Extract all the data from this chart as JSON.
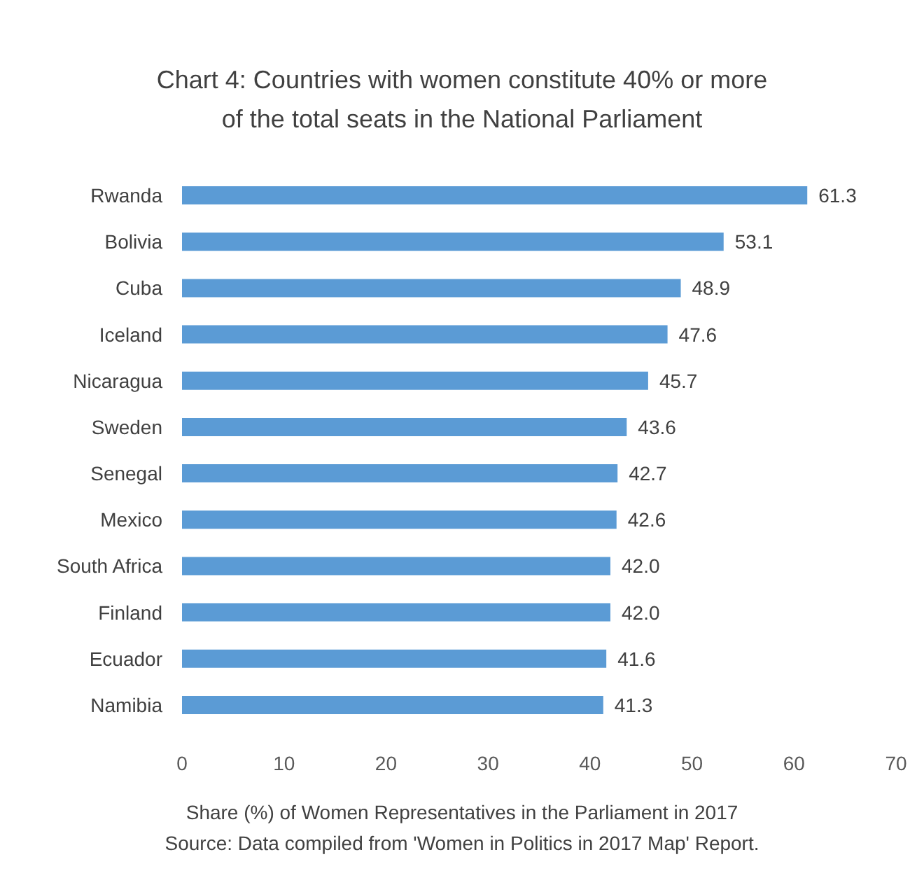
{
  "chart_data": {
    "type": "bar",
    "orientation": "horizontal",
    "title": "Chart 4: Countries with women constitute 40% or more\nof the total seats in the National Parliament",
    "xlabel": "Share (%) of Women Representatives in the Parliament in 2017",
    "annotations": [
      "Source: Data compiled from 'Women in Politics in 2017 Map' Report."
    ],
    "categories": [
      "Rwanda",
      "Bolivia",
      "Cuba",
      "Iceland",
      "Nicaragua",
      "Sweden",
      "Senegal",
      "Mexico",
      "South Africa",
      "Finland",
      "Ecuador",
      "Namibia"
    ],
    "values": [
      61.3,
      53.1,
      48.9,
      47.6,
      45.7,
      43.6,
      42.7,
      42.6,
      42.0,
      42.0,
      41.6,
      41.3
    ],
    "value_labels": [
      "61.3",
      "53.1",
      "48.9",
      "47.6",
      "45.7",
      "43.6",
      "42.7",
      "42.6",
      "42.0",
      "42.0",
      "41.6",
      "41.3"
    ],
    "color": "#5b9bd5",
    "xlim": [
      0,
      70
    ],
    "xticks": [
      0,
      10,
      20,
      30,
      40,
      50,
      60,
      70
    ],
    "grid": false
  }
}
